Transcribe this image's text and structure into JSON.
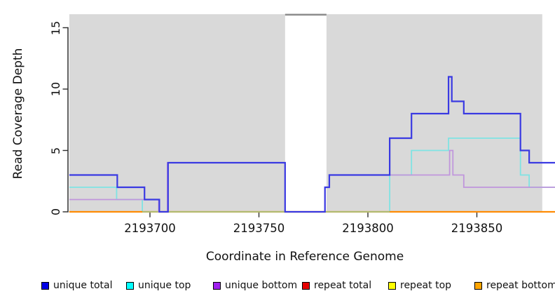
{
  "chart_data": {
    "type": "line",
    "subtype": "step-coverage",
    "title": "",
    "xlabel": "Coordinate in Reference Genome",
    "ylabel": "Read Coverage Depth",
    "x_ticks": [
      2193700,
      2193750,
      2193800,
      2193850
    ],
    "y_ticks": [
      0,
      5,
      10,
      15
    ],
    "xlim": [
      2193663,
      2193886
    ],
    "ylim": [
      0,
      16.1
    ],
    "grid": false,
    "plot_bg": "#ffffff",
    "shaded_regions": [
      {
        "name": "shaded-region-left",
        "x": [
          2193663,
          2193762
        ],
        "color": "#d9d9d9"
      },
      {
        "name": "shaded-region-right",
        "x": [
          2193781,
          2193880
        ],
        "color": "#d9d9d9"
      }
    ],
    "gap_top_bar": {
      "name": "gap-top-bar",
      "x": [
        2193762,
        2193781
      ],
      "color": "#8e8e8e"
    },
    "series": [
      {
        "key": "repeat-total",
        "label": "repeat total",
        "in_legend": true,
        "legend_color": "#e60000",
        "line_color": "#e60000",
        "width": 1.4,
        "steps": [
          [
            2193663,
            0
          ],
          [
            2193886,
            0
          ]
        ]
      },
      {
        "key": "repeat-top",
        "label": "repeat top",
        "in_legend": true,
        "legend_color": "#ffff00",
        "line_color": "#ffff00",
        "width": 1.4,
        "steps": [
          [
            2193663,
            0
          ],
          [
            2193886,
            0
          ]
        ]
      },
      {
        "key": "unique-top",
        "label": "unique top",
        "in_legend": true,
        "legend_color": "#00ffff",
        "line_color": "#7fe3e3",
        "width": 1.8,
        "steps": [
          [
            2193663,
            2
          ],
          [
            2193684.7,
            1
          ],
          [
            2193696.5,
            0
          ],
          [
            2193810,
            3
          ],
          [
            2193820,
            5
          ],
          [
            2193837,
            6
          ],
          [
            2193870,
            3
          ],
          [
            2193874,
            2
          ],
          [
            2193886,
            2
          ]
        ]
      },
      {
        "key": "repeat-bottom",
        "label": "repeat bottom",
        "in_legend": true,
        "legend_color": "#ffa500",
        "line_color": "#ff8c05",
        "width": 2.2,
        "steps": [
          [
            2193663,
            0
          ],
          [
            2193886,
            0
          ]
        ]
      },
      {
        "key": "zero-baseline-overlay",
        "label": "",
        "in_legend": false,
        "legend_color": "#96cc96",
        "line_color": "#96cc96",
        "width": 1.6,
        "steps": [
          [
            2193696.5,
            0
          ],
          [
            2193810,
            0
          ]
        ]
      },
      {
        "key": "unique-bottom",
        "label": "unique bottom",
        "in_legend": true,
        "legend_color": "#a020f0",
        "line_color": "#c096dc",
        "width": 1.8,
        "steps": [
          [
            2193663,
            1
          ],
          [
            2193704,
            0
          ],
          [
            2193708,
            4
          ],
          [
            2193762,
            0
          ],
          [
            2193780.3,
            2
          ],
          [
            2193782.3,
            3
          ],
          [
            2193837.5,
            5
          ],
          [
            2193839,
            3
          ],
          [
            2193844,
            2
          ],
          [
            2193886,
            2
          ]
        ]
      },
      {
        "key": "unique-total",
        "label": "unique total",
        "in_legend": true,
        "legend_color": "#0000e6",
        "line_color": "#3a3ae2",
        "width": 2.2,
        "steps": [
          [
            2193663,
            3
          ],
          [
            2193685,
            2
          ],
          [
            2193697.5,
            1
          ],
          [
            2193704.3,
            0
          ],
          [
            2193708.3,
            4
          ],
          [
            2193762,
            0
          ],
          [
            2193780.3,
            2
          ],
          [
            2193782.3,
            3
          ],
          [
            2193810,
            6
          ],
          [
            2193820,
            8
          ],
          [
            2193837,
            11
          ],
          [
            2193838.5,
            9
          ],
          [
            2193844,
            8
          ],
          [
            2193870,
            5
          ],
          [
            2193874,
            4
          ],
          [
            2193886,
            4
          ]
        ]
      }
    ],
    "legend": {
      "position": "bottom-horizontal",
      "items": [
        {
          "key": "unique-total",
          "label": "unique total",
          "color": "#0000e6"
        },
        {
          "key": "unique-top",
          "label": "unique top",
          "color": "#00ffff"
        },
        {
          "key": "unique-bottom",
          "label": "unique bottom",
          "color": "#a020f0"
        },
        {
          "key": "repeat-total",
          "label": "repeat total",
          "color": "#e60000"
        },
        {
          "key": "repeat-top",
          "label": "repeat top",
          "color": "#ffff00"
        },
        {
          "key": "repeat-bottom",
          "label": "repeat bottom",
          "color": "#ffa500"
        }
      ]
    }
  }
}
